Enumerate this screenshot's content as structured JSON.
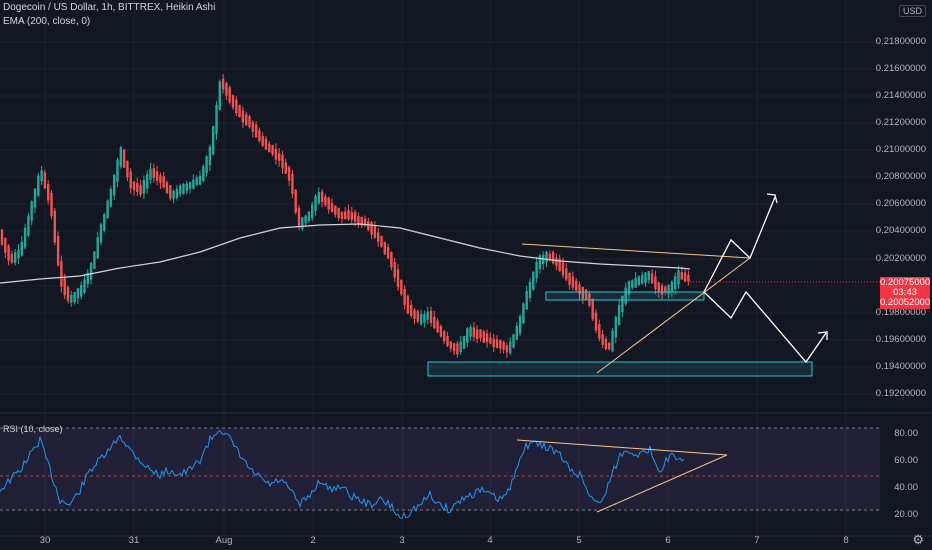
{
  "header": {
    "symbol": "Dogecoin / US Dollar, 1h, BITTREX, Heikin Ashi",
    "indicator": "EMA (200, close, 0)"
  },
  "rsi_header": "RSI (10, close)",
  "currency": "USD",
  "price_axis": [
    "0.21800000",
    "0.21600000",
    "0.21400000",
    "0.21200000",
    "0.21000000",
    "0.20800000",
    "0.20600000",
    "0.20400000",
    "0.20200000",
    "0.19800000",
    "0.19600000",
    "0.19400000",
    "0.19200000"
  ],
  "price_badges": {
    "current": "0.20075000",
    "countdown": "03:43",
    "low": "0.20052000"
  },
  "rsi_axis": [
    "80.00",
    "60.00",
    "40.00",
    "20.00"
  ],
  "date_axis": [
    "30",
    "31",
    "Aug",
    "2",
    "3",
    "4",
    "5",
    "6",
    "7",
    "8"
  ],
  "colors": {
    "bg": "#131722",
    "up": "#26a69a",
    "down": "#ef5350",
    "ema": "#d1d4dc",
    "rsi": "#2196f3",
    "rsi_band": "#7e57c2",
    "trend": "#f6c48a",
    "box": "#26c6da",
    "badge": "#f23645"
  },
  "chart_data": {
    "type": "candlestick",
    "ylim": [
      0.191,
      0.22
    ],
    "rsi_ylim": [
      15,
      88
    ],
    "rsi_levels": [
      30,
      50,
      70
    ]
  }
}
